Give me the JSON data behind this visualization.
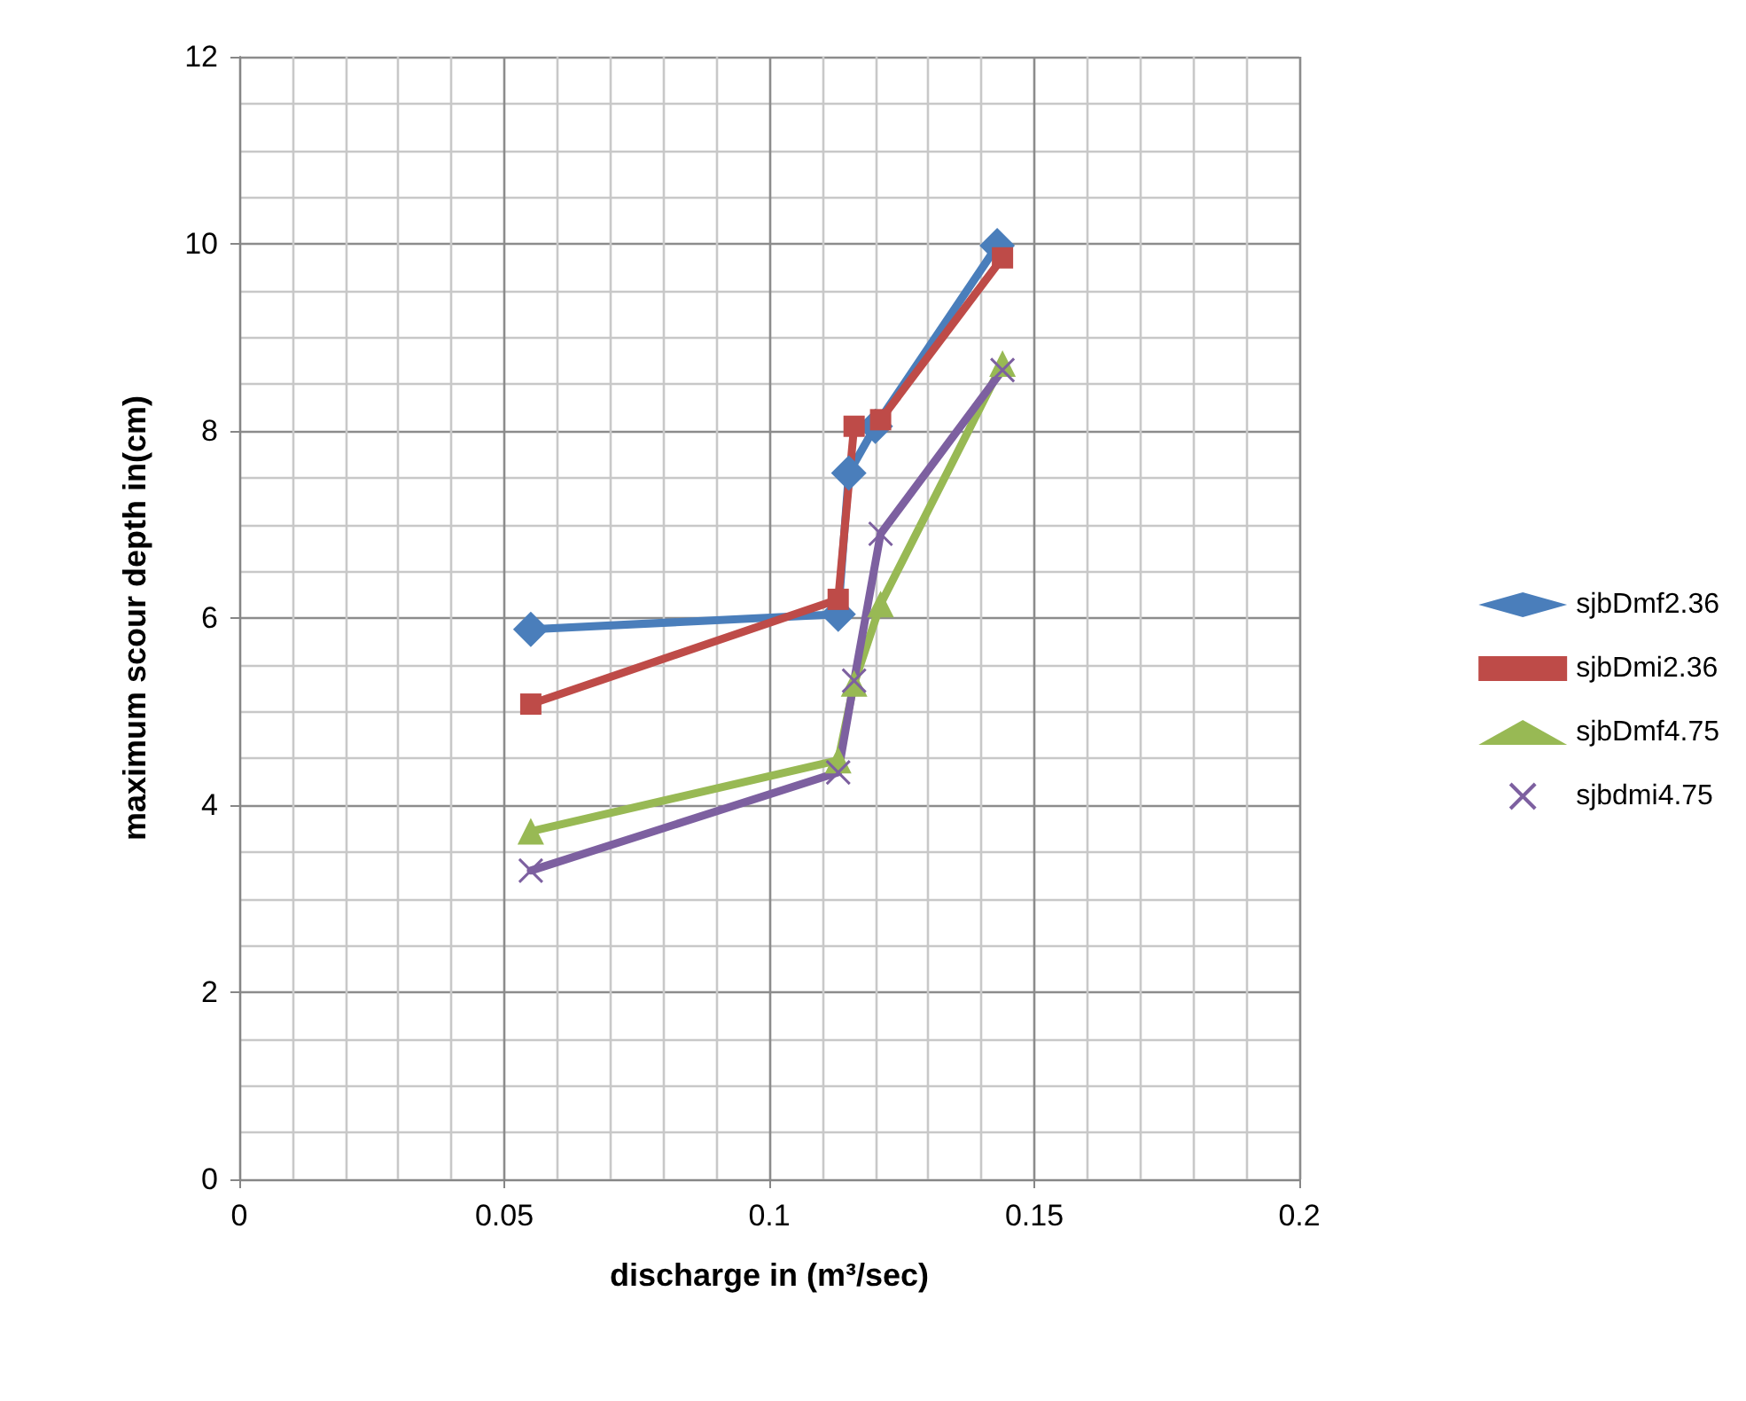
{
  "chart_data": {
    "type": "line",
    "xlabel": "discharge in (m³/sec)",
    "ylabel": "maximum scour depth in(cm)",
    "xlim": [
      0,
      0.2
    ],
    "xticks": [
      0,
      0.05,
      0.1,
      0.15,
      0.2
    ],
    "ylim": [
      0,
      12
    ],
    "yticks": [
      0,
      2,
      4,
      6,
      8,
      10,
      12
    ],
    "grid": true,
    "legend": "right",
    "series": [
      {
        "name": "sjbDmf2.36",
        "color": "#4a7ebb",
        "marker": "diamond",
        "x": [
          0.055,
          0.113,
          0.115,
          0.12,
          0.143
        ],
        "values": [
          5.88,
          6.04,
          7.55,
          8.05,
          9.98
        ]
      },
      {
        "name": "sjbDmi2.36",
        "color": "#be4b48",
        "marker": "square",
        "x": [
          0.055,
          0.113,
          0.116,
          0.121,
          0.144
        ],
        "values": [
          5.08,
          6.2,
          8.05,
          8.12,
          9.85
        ]
      },
      {
        "name": "sjbDmf4.75",
        "color": "#98b954",
        "marker": "triangle",
        "x": [
          0.055,
          0.113,
          0.116,
          0.121,
          0.144
        ],
        "values": [
          3.72,
          4.48,
          5.3,
          6.15,
          8.72
        ]
      },
      {
        "name": "sjbdmi4.75",
        "color": "#7d60a0",
        "marker": "cross",
        "x": [
          0.055,
          0.113,
          0.116,
          0.121,
          0.144
        ],
        "values": [
          3.3,
          4.35,
          5.33,
          6.9,
          8.65
        ]
      }
    ]
  }
}
